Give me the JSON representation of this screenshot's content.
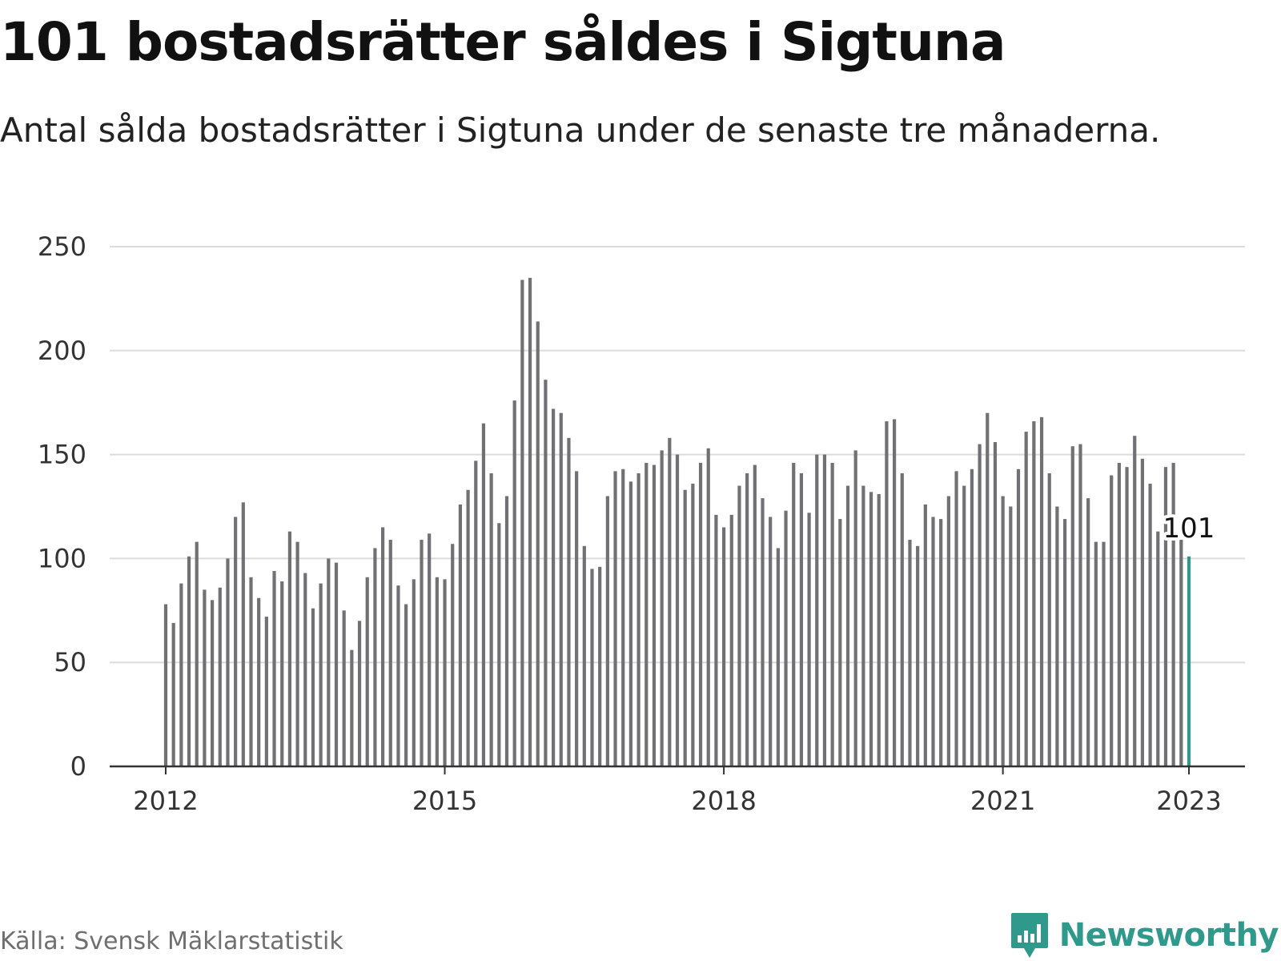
{
  "header": {
    "title": "101 bostadsrätter såldes i Sigtuna",
    "subtitle": "Antal sålda bostadsrätter i Sigtuna under de senaste tre månaderna."
  },
  "footer": {
    "source": "Källa: Svensk Mäklarstatistik",
    "brand": "Newsworthy"
  },
  "colors": {
    "bar": "#717175",
    "highlight": "#2f9a8c",
    "grid": "#dcdcdc",
    "axis": "#333333",
    "brand": "#2f9a8c"
  },
  "chart_data": {
    "type": "bar",
    "title": "101 bostadsrätter såldes i Sigtuna",
    "subtitle": "Antal sålda bostadsrätter i Sigtuna under de senaste tre månaderna.",
    "xlabel": "",
    "ylabel": "",
    "ylim": [
      0,
      250
    ],
    "yticks": [
      0,
      50,
      100,
      150,
      200,
      250
    ],
    "xticks": [
      "2012",
      "2015",
      "2018",
      "2021",
      "2023"
    ],
    "grid": true,
    "start": "2012-01",
    "end": "2023-01",
    "highlight_label": "101",
    "values": [
      78,
      69,
      88,
      101,
      108,
      85,
      80,
      86,
      100,
      120,
      127,
      91,
      81,
      72,
      94,
      89,
      113,
      108,
      93,
      76,
      88,
      100,
      98,
      75,
      56,
      70,
      91,
      105,
      115,
      109,
      87,
      78,
      90,
      109,
      112,
      91,
      90,
      107,
      126,
      133,
      147,
      165,
      141,
      117,
      130,
      176,
      234,
      235,
      214,
      186,
      172,
      170,
      158,
      142,
      106,
      95,
      96,
      130,
      142,
      143,
      137,
      141,
      146,
      145,
      152,
      158,
      150,
      133,
      136,
      146,
      153,
      121,
      115,
      121,
      135,
      141,
      145,
      129,
      120,
      105,
      123,
      146,
      141,
      122,
      150,
      150,
      146,
      119,
      135,
      152,
      135,
      132,
      131,
      166,
      167,
      141,
      109,
      106,
      126,
      120,
      119,
      130,
      142,
      135,
      143,
      155,
      170,
      156,
      130,
      125,
      143,
      161,
      166,
      168,
      141,
      125,
      119,
      154,
      155,
      129,
      108,
      108,
      140,
      146,
      144,
      159,
      148,
      136,
      113,
      144,
      146,
      109,
      101
    ]
  }
}
